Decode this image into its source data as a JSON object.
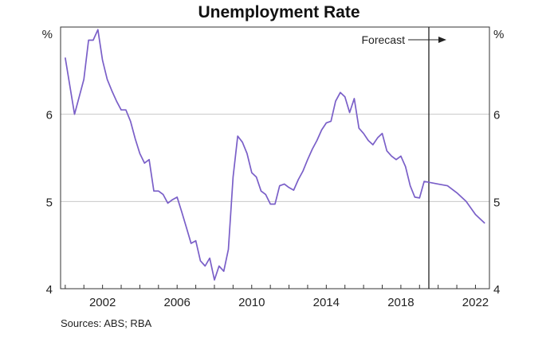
{
  "chart_data": {
    "type": "line",
    "title": "Unemployment Rate",
    "y_unit_left": "%",
    "y_unit_right": "%",
    "ylim": [
      4,
      7
    ],
    "yticks": [
      4,
      5,
      6
    ],
    "xlim": [
      1999.75,
      2022.75
    ],
    "xticks": [
      2002,
      2006,
      2010,
      2014,
      2018,
      2022
    ],
    "grid": "horizontal",
    "forecast_start": 2019.5,
    "forecast_label": "Forecast",
    "series": [
      {
        "color": "#7a5fc8",
        "x": [
          2000.0,
          2000.5,
          2001.0,
          2001.25,
          2001.5,
          2001.75,
          2002.0,
          2002.25,
          2002.5,
          2002.75,
          2003.0,
          2003.25,
          2003.5,
          2003.75,
          2004.0,
          2004.25,
          2004.5,
          2004.75,
          2005.0,
          2005.25,
          2005.5,
          2005.75,
          2006.0,
          2006.25,
          2006.5,
          2006.75,
          2007.0,
          2007.25,
          2007.5,
          2007.75,
          2008.0,
          2008.25,
          2008.5,
          2008.75,
          2009.0,
          2009.25,
          2009.5,
          2009.75,
          2010.0,
          2010.25,
          2010.5,
          2010.75,
          2011.0,
          2011.25,
          2011.5,
          2011.75,
          2012.0,
          2012.25,
          2012.5,
          2012.75,
          2013.0,
          2013.25,
          2013.5,
          2013.75,
          2014.0,
          2014.25,
          2014.5,
          2014.75,
          2015.0,
          2015.25,
          2015.5,
          2015.75,
          2016.0,
          2016.25,
          2016.5,
          2016.75,
          2017.0,
          2017.25,
          2017.5,
          2017.75,
          2018.0,
          2018.25,
          2018.5,
          2018.75,
          2019.0,
          2019.25,
          2019.5,
          2020.0,
          2020.5,
          2021.0,
          2021.5,
          2022.0,
          2022.5
        ],
        "values": [
          6.65,
          6.0,
          6.4,
          6.85,
          6.85,
          6.97,
          6.62,
          6.4,
          6.27,
          6.15,
          6.05,
          6.05,
          5.92,
          5.72,
          5.55,
          5.44,
          5.48,
          5.12,
          5.12,
          5.08,
          4.98,
          5.02,
          5.05,
          4.88,
          4.7,
          4.52,
          4.55,
          4.32,
          4.26,
          4.35,
          4.1,
          4.26,
          4.2,
          4.45,
          5.28,
          5.75,
          5.68,
          5.55,
          5.33,
          5.28,
          5.12,
          5.08,
          4.97,
          4.97,
          5.18,
          5.2,
          5.16,
          5.13,
          5.25,
          5.35,
          5.48,
          5.6,
          5.7,
          5.82,
          5.9,
          5.92,
          6.15,
          6.25,
          6.2,
          6.02,
          6.18,
          5.84,
          5.78,
          5.7,
          5.65,
          5.73,
          5.78,
          5.58,
          5.52,
          5.48,
          5.52,
          5.4,
          5.18,
          5.05,
          5.04,
          5.23,
          5.22,
          5.2,
          5.18,
          5.1,
          5.0,
          4.85,
          4.75
        ]
      }
    ]
  },
  "source_text": "Sources:   ABS; RBA"
}
